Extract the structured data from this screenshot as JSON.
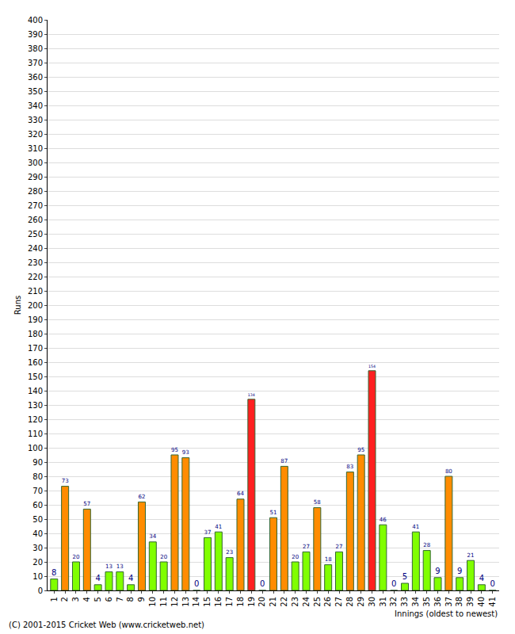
{
  "chart_data": {
    "type": "bar",
    "x_label": "Innings (oldest to newest)",
    "y_label": "Runs",
    "annotations": [
      "(C) 2001-2015 Cricket Web (www.cricketweb.net)"
    ],
    "categories": [
      "1",
      "2",
      "3",
      "4",
      "5",
      "6",
      "7",
      "8",
      "9",
      "10",
      "11",
      "12",
      "13",
      "14",
      "15",
      "16",
      "17",
      "18",
      "19",
      "20",
      "21",
      "22",
      "23",
      "24",
      "25",
      "26",
      "27",
      "28",
      "29",
      "30",
      "31",
      "32",
      "33",
      "34",
      "35",
      "36",
      "37",
      "38",
      "39",
      "40",
      "41"
    ],
    "values": [
      8,
      73,
      20,
      57,
      4,
      13,
      13,
      4,
      62,
      34,
      20,
      95,
      93,
      0,
      37,
      41,
      23,
      64,
      134,
      0,
      51,
      87,
      20,
      27,
      58,
      18,
      27,
      83,
      95,
      154,
      46,
      0,
      5,
      41,
      28,
      9,
      80,
      9,
      21,
      4,
      0
    ],
    "colors": [
      "#80ff00",
      "#ff8c00",
      "#80ff00",
      "#ff8c00",
      "#80ff00",
      "#80ff00",
      "#80ff00",
      "#80ff00",
      "#ff8c00",
      "#80ff00",
      "#80ff00",
      "#ff8c00",
      "#ff8c00",
      "#80ff00",
      "#80ff00",
      "#80ff00",
      "#80ff00",
      "#ff8c00",
      "#ff2020",
      "#80ff00",
      "#ff8c00",
      "#ff8c00",
      "#80ff00",
      "#80ff00",
      "#ff8c00",
      "#80ff00",
      "#80ff00",
      "#ff8c00",
      "#ff8c00",
      "#ff2020",
      "#80ff00",
      "#80ff00",
      "#80ff00",
      "#80ff00",
      "#80ff00",
      "#80ff00",
      "#ff8c00",
      "#80ff00",
      "#80ff00",
      "#80ff00",
      "#80ff00"
    ],
    "ylim": [
      0,
      400
    ],
    "yticks": [
      0,
      10,
      20,
      30,
      40,
      50,
      60,
      70,
      80,
      90,
      100,
      110,
      120,
      130,
      140,
      150,
      160,
      170,
      180,
      190,
      200,
      210,
      220,
      230,
      240,
      250,
      260,
      270,
      280,
      290,
      300,
      310,
      320,
      330,
      340,
      350,
      360,
      370,
      380,
      390,
      400
    ],
    "grid": true,
    "data_labels": true
  }
}
